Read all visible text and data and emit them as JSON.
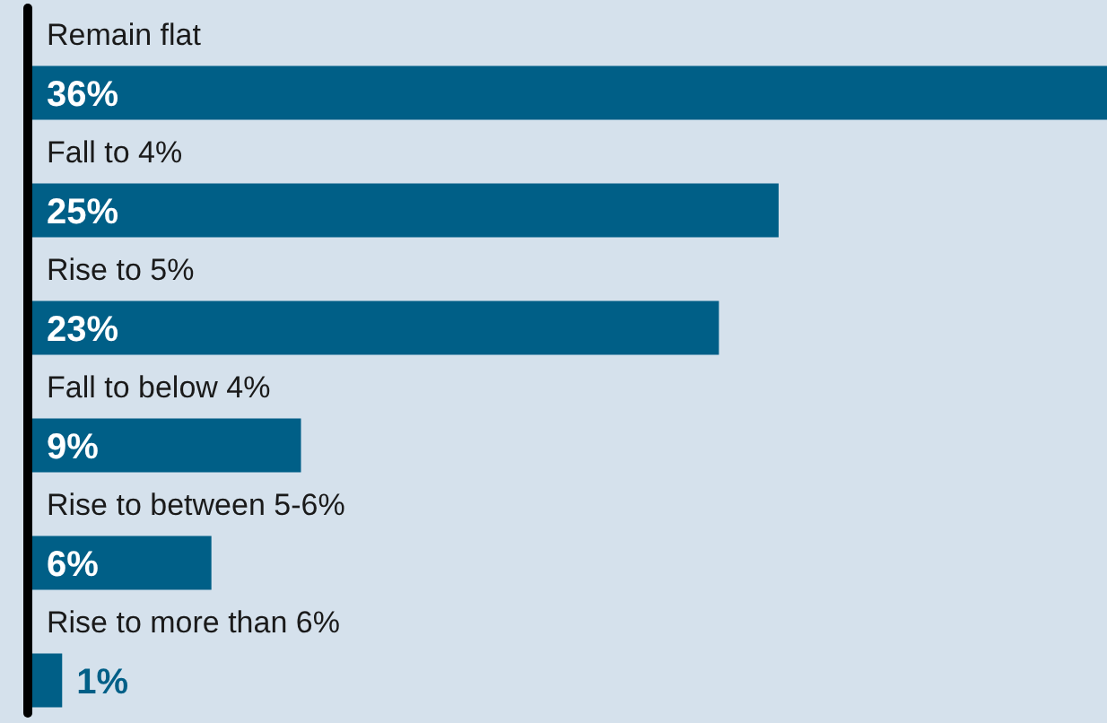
{
  "chart_data": {
    "type": "bar",
    "orientation": "horizontal",
    "categories": [
      "Remain flat",
      "Fall to 4%",
      "Rise to 5%",
      "Fall to below 4%",
      "Rise to between 5-6%",
      "Rise to more than 6%"
    ],
    "values": [
      36,
      25,
      23,
      9,
      6,
      1
    ],
    "value_labels": [
      "36%",
      "25%",
      "23%",
      "9%",
      "6%",
      "1%"
    ],
    "color": "#005f87"
  }
}
